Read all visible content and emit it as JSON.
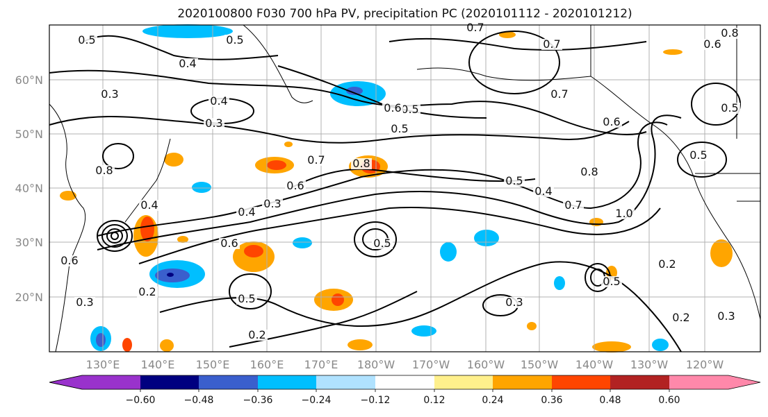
{
  "title": "2020100800 F030 700 hPa PV, precipitation PC (2020101112 - 2020101212)",
  "lat_labels": [
    "60°N",
    "50°N",
    "40°N",
    "30°N",
    "20°N"
  ],
  "lon_labels": [
    "130°E",
    "140°E",
    "150°E",
    "160°E",
    "170°E",
    "180°W",
    "170°W",
    "160°W",
    "150°W",
    "140°W",
    "130°W",
    "120°W"
  ],
  "colorbar": {
    "colors": [
      "#9932cc",
      "#000080",
      "#3a5fcd",
      "#00bfff",
      "#b0e2ff",
      "#ffffff",
      "#fff08c",
      "#ffa500",
      "#ff4500",
      "#b22222",
      "#ff88aa"
    ],
    "ticks": [
      "−0.60",
      "−0.48",
      "−0.36",
      "−0.24",
      "−0.12",
      "0.12",
      "0.24",
      "0.36",
      "0.48",
      "0.60"
    ]
  },
  "contour_labels": [
    "0.5",
    "0.5",
    "0.7",
    "0.8",
    "0.6",
    "0.7",
    "0.4",
    "0.3",
    "0.4",
    "0.3",
    "0.7",
    "0.8",
    "0.6",
    "0.5",
    "0.5",
    "0.5",
    "0.6",
    "0.7",
    "0.8",
    "0.6",
    "0.4",
    "0.3",
    "0.4",
    "0.8",
    "0.5",
    "0.4",
    "0.7",
    "1.0",
    "0.5",
    "0.6",
    "0.5",
    "0.2",
    "0.5",
    "0.2",
    "0.5",
    "0.3",
    "0.2",
    "0.3",
    "0.2",
    "0.3",
    "0.6"
  ]
}
